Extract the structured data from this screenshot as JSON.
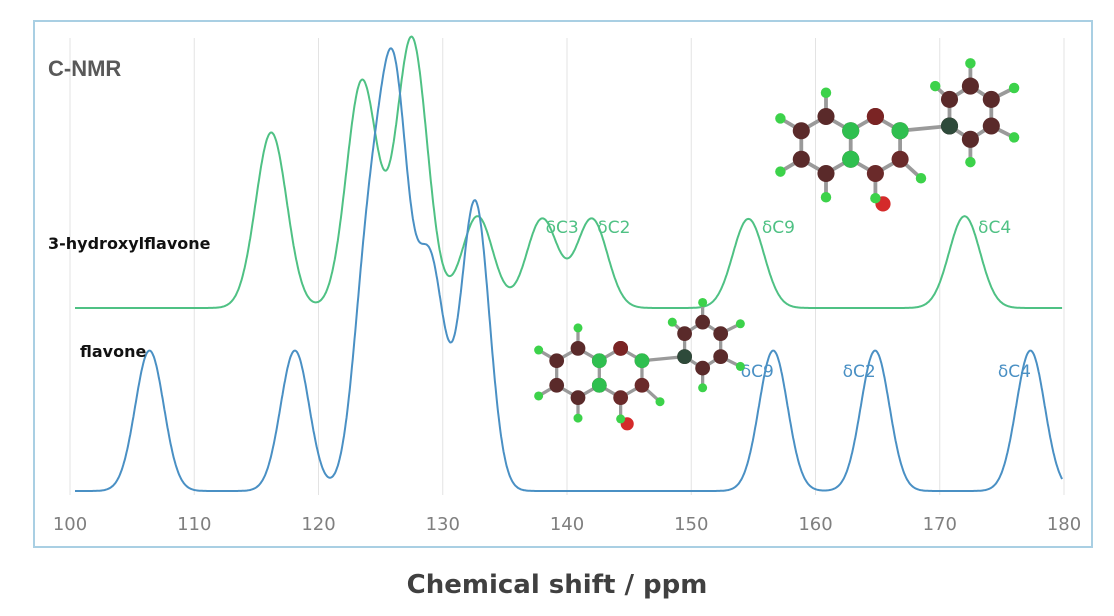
{
  "chart_data": {
    "type": "line",
    "title": "C-NMR",
    "xlabel": "Chemical shift / ppm",
    "ylabel": "",
    "xlim": [
      100,
      180
    ],
    "xticks": [
      100,
      110,
      120,
      130,
      140,
      150,
      160,
      170,
      180
    ],
    "grid": "vertical",
    "series": [
      {
        "name": "3-hydroxylflavone",
        "color": "#4fc184",
        "peaks": [
          {
            "x": 116.2,
            "y": 0.65
          },
          {
            "x": 123.5,
            "y": 0.84
          },
          {
            "x": 127.5,
            "y": 1.0
          },
          {
            "x": 132.8,
            "y": 0.34
          },
          {
            "x": 138.0,
            "y": 0.33
          },
          {
            "x": 142.0,
            "y": 0.33
          },
          {
            "x": 154.6,
            "y": 0.33
          },
          {
            "x": 172.0,
            "y": 0.34
          }
        ],
        "annotations": [
          {
            "x": 138.0,
            "text": "δC3"
          },
          {
            "x": 142.0,
            "text": "δC2"
          },
          {
            "x": 154.6,
            "text": "δC9"
          },
          {
            "x": 172.0,
            "text": "δC4"
          }
        ]
      },
      {
        "name": "flavone",
        "color": "#4a90c4",
        "peaks": [
          {
            "x": 106.4,
            "y": 0.34
          },
          {
            "x": 118.1,
            "y": 0.34
          },
          {
            "x": 124.0,
            "y": 0.55
          },
          {
            "x": 126.1,
            "y": 0.93
          },
          {
            "x": 129.0,
            "y": 0.54
          },
          {
            "x": 132.6,
            "y": 0.7
          },
          {
            "x": 156.6,
            "y": 0.34
          },
          {
            "x": 164.8,
            "y": 0.34
          },
          {
            "x": 177.3,
            "y": 0.34
          }
        ],
        "annotations": [
          {
            "x": 156.6,
            "text": "δC9"
          },
          {
            "x": 164.8,
            "text": "δC2"
          },
          {
            "x": 177.3,
            "text": "δC4"
          }
        ]
      }
    ]
  }
}
